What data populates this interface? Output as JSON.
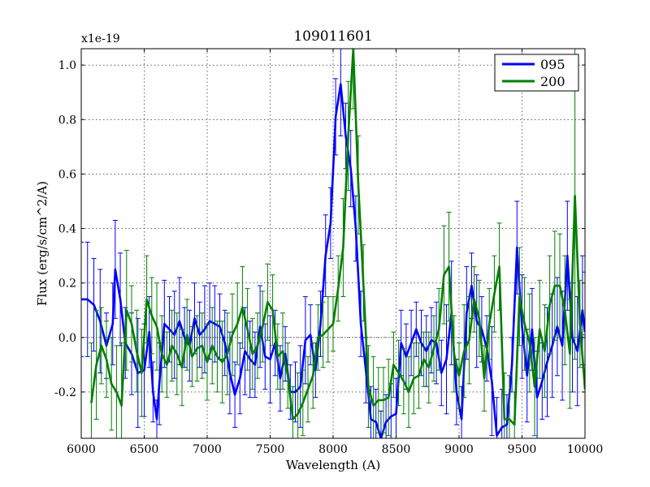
{
  "chart_data": {
    "type": "line",
    "title": "109011601",
    "xlabel": "Wavelength (A)",
    "ylabel": "Flux (erg/s/cm^2/A)",
    "y_offset_label": "x1e-19",
    "xlim": [
      6000,
      10000
    ],
    "ylim": [
      -0.37,
      1.06
    ],
    "x_ticks": [
      6000,
      6500,
      7000,
      7500,
      8000,
      8500,
      9000,
      9500,
      10000
    ],
    "x_tick_labels": [
      "6000",
      "6500",
      "7000",
      "7500",
      "8000",
      "8500",
      "9000",
      "9500",
      "10000"
    ],
    "y_ticks": [
      -0.2,
      0.0,
      0.2,
      0.4,
      0.6,
      0.8,
      1.0
    ],
    "y_tick_labels": [
      "-0.2",
      "0.0",
      "0.2",
      "0.4",
      "0.6",
      "0.8",
      "1.0"
    ],
    "grid": true,
    "zero_line": true,
    "legend_position": "top-right",
    "series": [
      {
        "name": "095",
        "color": "#0000ff",
        "error_bars": true,
        "points": [
          [
            6000,
            0.14,
            0.21
          ],
          [
            6050,
            0.14,
            0.21
          ],
          [
            6100,
            0.12,
            0.17
          ],
          [
            6150,
            0.06,
            0.19
          ],
          [
            6200,
            -0.03,
            0.12
          ],
          [
            6250,
            0.05,
            0.15
          ],
          [
            6270,
            0.25,
            0.18
          ],
          [
            6310,
            0.14,
            0.17
          ],
          [
            6350,
            -0.02,
            0.13
          ],
          [
            6400,
            -0.06,
            0.15
          ],
          [
            6450,
            -0.13,
            0.2
          ],
          [
            6500,
            -0.12,
            0.17
          ],
          [
            6540,
            0.02,
            0.13
          ],
          [
            6570,
            -0.2,
            0.11
          ],
          [
            6600,
            -0.3,
            0.07
          ],
          [
            6620,
            -0.17,
            0.15
          ],
          [
            6660,
            0.05,
            0.16
          ],
          [
            6700,
            0.03,
            0.12
          ],
          [
            6740,
            0.01,
            0.16
          ],
          [
            6780,
            0.06,
            0.16
          ],
          [
            6820,
            0.0,
            0.11
          ],
          [
            6860,
            -0.03,
            0.13
          ],
          [
            6900,
            0.07,
            0.13
          ],
          [
            6940,
            0.01,
            0.12
          ],
          [
            6980,
            0.03,
            0.16
          ],
          [
            7020,
            0.06,
            0.14
          ],
          [
            7060,
            0.05,
            0.14
          ],
          [
            7100,
            0.04,
            0.12
          ],
          [
            7140,
            -0.02,
            0.12
          ],
          [
            7180,
            -0.13,
            0.15
          ],
          [
            7220,
            -0.21,
            0.12
          ],
          [
            7260,
            -0.15,
            0.13
          ],
          [
            7300,
            -0.05,
            0.16
          ],
          [
            7340,
            -0.08,
            0.14
          ],
          [
            7380,
            -0.1,
            0.12
          ],
          [
            7420,
            0.04,
            0.15
          ],
          [
            7460,
            -0.07,
            0.12
          ],
          [
            7500,
            -0.08,
            0.16
          ],
          [
            7540,
            -0.02,
            0.12
          ],
          [
            7580,
            -0.15,
            0.12
          ],
          [
            7620,
            -0.06,
            0.1
          ],
          [
            7660,
            -0.2,
            0.1
          ],
          [
            7700,
            -0.2,
            0.11
          ],
          [
            7740,
            -0.18,
            0.15
          ],
          [
            7780,
            -0.01,
            0.16
          ],
          [
            7820,
            0.01,
            0.11
          ],
          [
            7860,
            -0.12,
            0.1
          ],
          [
            7900,
            0.05,
            0.12
          ],
          [
            7940,
            0.3,
            0.15
          ],
          [
            7980,
            0.42,
            0.13
          ],
          [
            8020,
            0.81,
            0.14
          ],
          [
            8060,
            0.93,
            0.19
          ],
          [
            8100,
            0.74,
            0.12
          ],
          [
            8140,
            0.62,
            0.14
          ],
          [
            8180,
            0.4,
            0.12
          ],
          [
            8220,
            0.05,
            0.12
          ],
          [
            8260,
            -0.12,
            0.12
          ],
          [
            8300,
            -0.3,
            0.12
          ],
          [
            8340,
            -0.31,
            0.12
          ],
          [
            8380,
            -0.37,
            0.1
          ],
          [
            8420,
            -0.31,
            0.1
          ],
          [
            8460,
            -0.29,
            0.12
          ],
          [
            8500,
            -0.28,
            0.13
          ],
          [
            8540,
            -0.02,
            0.12
          ],
          [
            8580,
            -0.07,
            0.12
          ],
          [
            8620,
            -0.02,
            0.12
          ],
          [
            8660,
            0.03,
            0.1
          ],
          [
            8700,
            -0.02,
            0.12
          ],
          [
            8740,
            -0.05,
            0.13
          ],
          [
            8780,
            -0.01,
            0.12
          ],
          [
            8820,
            -0.02,
            0.15
          ],
          [
            8860,
            -0.13,
            0.12
          ],
          [
            8900,
            -0.08,
            0.2
          ],
          [
            8940,
            0.09,
            0.19
          ],
          [
            8980,
            -0.2,
            0.12
          ],
          [
            9020,
            -0.3,
            0.12
          ],
          [
            9060,
            0.09,
            0.17
          ],
          [
            9100,
            0.19,
            0.12
          ],
          [
            9140,
            0.06,
            0.17
          ],
          [
            9180,
            0.03,
            0.12
          ],
          [
            9220,
            -0.04,
            0.12
          ],
          [
            9260,
            -0.16,
            0.2
          ],
          [
            9300,
            -0.36,
            0.14
          ],
          [
            9340,
            -0.33,
            0.14
          ],
          [
            9380,
            -0.32,
            0.11
          ],
          [
            9420,
            -0.1,
            0.1
          ],
          [
            9460,
            0.33,
            0.17
          ],
          [
            9500,
            0.04,
            0.19
          ],
          [
            9540,
            -0.14,
            0.17
          ],
          [
            9580,
            0.03,
            0.15
          ],
          [
            9620,
            -0.22,
            0.17
          ],
          [
            9660,
            -0.16,
            0.14
          ],
          [
            9700,
            -0.09,
            0.2
          ],
          [
            9740,
            -0.03,
            0.19
          ],
          [
            9780,
            0.04,
            0.18
          ],
          [
            9820,
            -0.03,
            0.2
          ],
          [
            9860,
            0.3,
            0.2
          ],
          [
            9900,
            0.0,
            0.2
          ],
          [
            9940,
            -0.05,
            0.2
          ],
          [
            9980,
            0.1,
            0.2
          ],
          [
            10000,
            0.02,
            0.22
          ]
        ]
      },
      {
        "name": "200",
        "color": "#007f00",
        "error_bars": true,
        "points": [
          [
            6080,
            -0.24,
            0.22
          ],
          [
            6120,
            -0.1,
            0.2
          ],
          [
            6160,
            -0.03,
            0.14
          ],
          [
            6200,
            -0.08,
            0.14
          ],
          [
            6240,
            -0.17,
            0.17
          ],
          [
            6280,
            -0.2,
            0.17
          ],
          [
            6320,
            -0.25,
            0.23
          ],
          [
            6360,
            0.1,
            0.22
          ],
          [
            6400,
            0.05,
            0.14
          ],
          [
            6440,
            -0.05,
            0.15
          ],
          [
            6480,
            -0.13,
            0.16
          ],
          [
            6520,
            0.14,
            0.16
          ],
          [
            6560,
            0.08,
            0.14
          ],
          [
            6600,
            0.04,
            0.16
          ],
          [
            6640,
            -0.06,
            0.14
          ],
          [
            6680,
            -0.1,
            0.12
          ],
          [
            6720,
            -0.03,
            0.13
          ],
          [
            6760,
            -0.06,
            0.15
          ],
          [
            6800,
            -0.11,
            0.14
          ],
          [
            6840,
            0.01,
            0.13
          ],
          [
            6880,
            -0.07,
            0.11
          ],
          [
            6920,
            -0.04,
            0.12
          ],
          [
            6960,
            -0.03,
            0.12
          ],
          [
            7000,
            -0.09,
            0.14
          ],
          [
            7040,
            -0.03,
            0.14
          ],
          [
            7080,
            -0.07,
            0.13
          ],
          [
            7120,
            -0.09,
            0.15
          ],
          [
            7160,
            -0.06,
            0.15
          ],
          [
            7200,
            0.01,
            0.15
          ],
          [
            7240,
            0.05,
            0.15
          ],
          [
            7280,
            0.11,
            0.15
          ],
          [
            7320,
            0.03,
            0.15
          ],
          [
            7360,
            -0.06,
            0.13
          ],
          [
            7400,
            -0.03,
            0.12
          ],
          [
            7440,
            0.04,
            0.13
          ],
          [
            7480,
            0.13,
            0.14
          ],
          [
            7520,
            0.1,
            0.13
          ],
          [
            7560,
            -0.07,
            0.12
          ],
          [
            7600,
            -0.05,
            0.14
          ],
          [
            7640,
            -0.14,
            0.12
          ],
          [
            7680,
            -0.3,
            0.12
          ],
          [
            7720,
            -0.28,
            0.15
          ],
          [
            7760,
            -0.24,
            0.12
          ],
          [
            7800,
            -0.19,
            0.12
          ],
          [
            7840,
            -0.14,
            0.12
          ],
          [
            7880,
            0.0,
            0.12
          ],
          [
            7920,
            0.01,
            0.12
          ],
          [
            7960,
            0.03,
            0.12
          ],
          [
            8000,
            0.05,
            0.1
          ],
          [
            8040,
            0.18,
            0.12
          ],
          [
            8080,
            0.33,
            0.18
          ],
          [
            8120,
            0.74,
            0.2
          ],
          [
            8160,
            1.06,
            0.22
          ],
          [
            8200,
            0.56,
            0.18
          ],
          [
            8240,
            0.2,
            0.14
          ],
          [
            8280,
            -0.18,
            0.15
          ],
          [
            8320,
            -0.25,
            0.18
          ],
          [
            8360,
            -0.23,
            0.12
          ],
          [
            8400,
            -0.23,
            0.12
          ],
          [
            8440,
            -0.22,
            0.14
          ],
          [
            8480,
            -0.1,
            0.12
          ],
          [
            8520,
            -0.13,
            0.12
          ],
          [
            8560,
            -0.16,
            0.12
          ],
          [
            8600,
            -0.2,
            0.13
          ],
          [
            8640,
            -0.15,
            0.13
          ],
          [
            8680,
            -0.14,
            0.12
          ],
          [
            8720,
            -0.08,
            0.1
          ],
          [
            8760,
            -0.11,
            0.13
          ],
          [
            8800,
            -0.04,
            0.12
          ],
          [
            8840,
            0.03,
            0.15
          ],
          [
            8880,
            0.23,
            0.18
          ],
          [
            8920,
            0.26,
            0.2
          ],
          [
            8960,
            -0.06,
            0.14
          ],
          [
            9000,
            -0.14,
            0.12
          ],
          [
            9040,
            -0.05,
            0.17
          ],
          [
            9080,
            -0.01,
            0.16
          ],
          [
            9120,
            0.14,
            0.12
          ],
          [
            9160,
            0.07,
            0.14
          ],
          [
            9200,
            -0.15,
            0.12
          ],
          [
            9240,
            0.05,
            0.13
          ],
          [
            9280,
            0.16,
            0.14
          ],
          [
            9320,
            0.26,
            0.16
          ],
          [
            9360,
            -0.3,
            0.17
          ],
          [
            9400,
            -0.3,
            0.16
          ],
          [
            9440,
            -0.32,
            0.12
          ],
          [
            9480,
            0.15,
            0.18
          ],
          [
            9520,
            0.05,
            0.17
          ],
          [
            9560,
            -0.02,
            0.18
          ],
          [
            9600,
            -0.18,
            0.18
          ],
          [
            9640,
            0.03,
            0.18
          ],
          [
            9680,
            -0.05,
            0.17
          ],
          [
            9720,
            0.12,
            0.18
          ],
          [
            9760,
            0.19,
            0.2
          ],
          [
            9800,
            0.19,
            0.19
          ],
          [
            9840,
            0.1,
            0.2
          ],
          [
            9880,
            -0.06,
            0.2
          ],
          [
            9920,
            0.52,
            0.6
          ],
          [
            9960,
            0.05,
            0.16
          ],
          [
            10000,
            -0.19,
            0.2
          ]
        ]
      }
    ]
  }
}
